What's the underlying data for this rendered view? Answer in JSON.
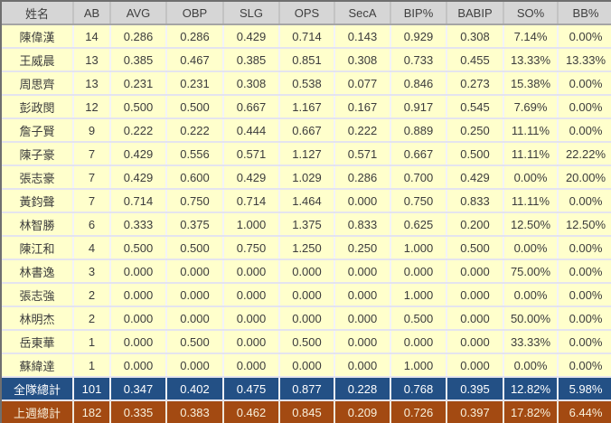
{
  "colors": {
    "header_bg": "#d6d6d6",
    "header_text": "#3f3f3f",
    "row_bg": "#ffffcc",
    "row_text": "#3c3c3c",
    "team_total_bg": "#235085",
    "team_total_text": "#ffffff",
    "last_week_total_bg": "#a34a12",
    "last_week_total_text": "#f8f0dc",
    "outer_border": "#6f6f6f"
  },
  "chart_data": {
    "type": "table",
    "columns": [
      "姓名",
      "AB",
      "AVG",
      "OBP",
      "SLG",
      "OPS",
      "SecA",
      "BIP%",
      "BABIP",
      "SO%",
      "BB%"
    ],
    "rows": [
      {
        "name": "陳偉漢",
        "values": [
          "14",
          "0.286",
          "0.286",
          "0.429",
          "0.714",
          "0.143",
          "0.929",
          "0.308",
          "7.14%",
          "0.00%"
        ]
      },
      {
        "name": "王威晨",
        "values": [
          "13",
          "0.385",
          "0.467",
          "0.385",
          "0.851",
          "0.308",
          "0.733",
          "0.455",
          "13.33%",
          "13.33%"
        ]
      },
      {
        "name": "周思齊",
        "values": [
          "13",
          "0.231",
          "0.231",
          "0.308",
          "0.538",
          "0.077",
          "0.846",
          "0.273",
          "15.38%",
          "0.00%"
        ]
      },
      {
        "name": "彭政閔",
        "values": [
          "12",
          "0.500",
          "0.500",
          "0.667",
          "1.167",
          "0.167",
          "0.917",
          "0.545",
          "7.69%",
          "0.00%"
        ]
      },
      {
        "name": "詹子賢",
        "values": [
          "9",
          "0.222",
          "0.222",
          "0.444",
          "0.667",
          "0.222",
          "0.889",
          "0.250",
          "11.11%",
          "0.00%"
        ]
      },
      {
        "name": "陳子豪",
        "values": [
          "7",
          "0.429",
          "0.556",
          "0.571",
          "1.127",
          "0.571",
          "0.667",
          "0.500",
          "11.11%",
          "22.22%"
        ]
      },
      {
        "name": "張志豪",
        "values": [
          "7",
          "0.429",
          "0.600",
          "0.429",
          "1.029",
          "0.286",
          "0.700",
          "0.429",
          "0.00%",
          "20.00%"
        ]
      },
      {
        "name": "黃鈞聲",
        "values": [
          "7",
          "0.714",
          "0.750",
          "0.714",
          "1.464",
          "0.000",
          "0.750",
          "0.833",
          "11.11%",
          "0.00%"
        ]
      },
      {
        "name": "林智勝",
        "values": [
          "6",
          "0.333",
          "0.375",
          "1.000",
          "1.375",
          "0.833",
          "0.625",
          "0.200",
          "12.50%",
          "12.50%"
        ]
      },
      {
        "name": "陳江和",
        "values": [
          "4",
          "0.500",
          "0.500",
          "0.750",
          "1.250",
          "0.250",
          "1.000",
          "0.500",
          "0.00%",
          "0.00%"
        ]
      },
      {
        "name": "林書逸",
        "values": [
          "3",
          "0.000",
          "0.000",
          "0.000",
          "0.000",
          "0.000",
          "0.000",
          "0.000",
          "75.00%",
          "0.00%"
        ]
      },
      {
        "name": "張志強",
        "values": [
          "2",
          "0.000",
          "0.000",
          "0.000",
          "0.000",
          "0.000",
          "1.000",
          "0.000",
          "0.00%",
          "0.00%"
        ]
      },
      {
        "name": "林明杰",
        "values": [
          "2",
          "0.000",
          "0.000",
          "0.000",
          "0.000",
          "0.000",
          "0.500",
          "0.000",
          "50.00%",
          "0.00%"
        ]
      },
      {
        "name": "岳東華",
        "values": [
          "1",
          "0.000",
          "0.500",
          "0.000",
          "0.500",
          "0.000",
          "0.000",
          "0.000",
          "33.33%",
          "0.00%"
        ]
      },
      {
        "name": "蘇緯達",
        "values": [
          "1",
          "0.000",
          "0.000",
          "0.000",
          "0.000",
          "0.000",
          "1.000",
          "0.000",
          "0.00%",
          "0.00%"
        ]
      }
    ],
    "totals": [
      {
        "label": "全隊總計",
        "kind": "team",
        "values": [
          "101",
          "0.347",
          "0.402",
          "0.475",
          "0.877",
          "0.228",
          "0.768",
          "0.395",
          "12.82%",
          "5.98%"
        ]
      },
      {
        "label": "上週總計",
        "kind": "last-week",
        "values": [
          "182",
          "0.335",
          "0.383",
          "0.462",
          "0.845",
          "0.209",
          "0.726",
          "0.397",
          "17.82%",
          "6.44%"
        ]
      }
    ]
  }
}
